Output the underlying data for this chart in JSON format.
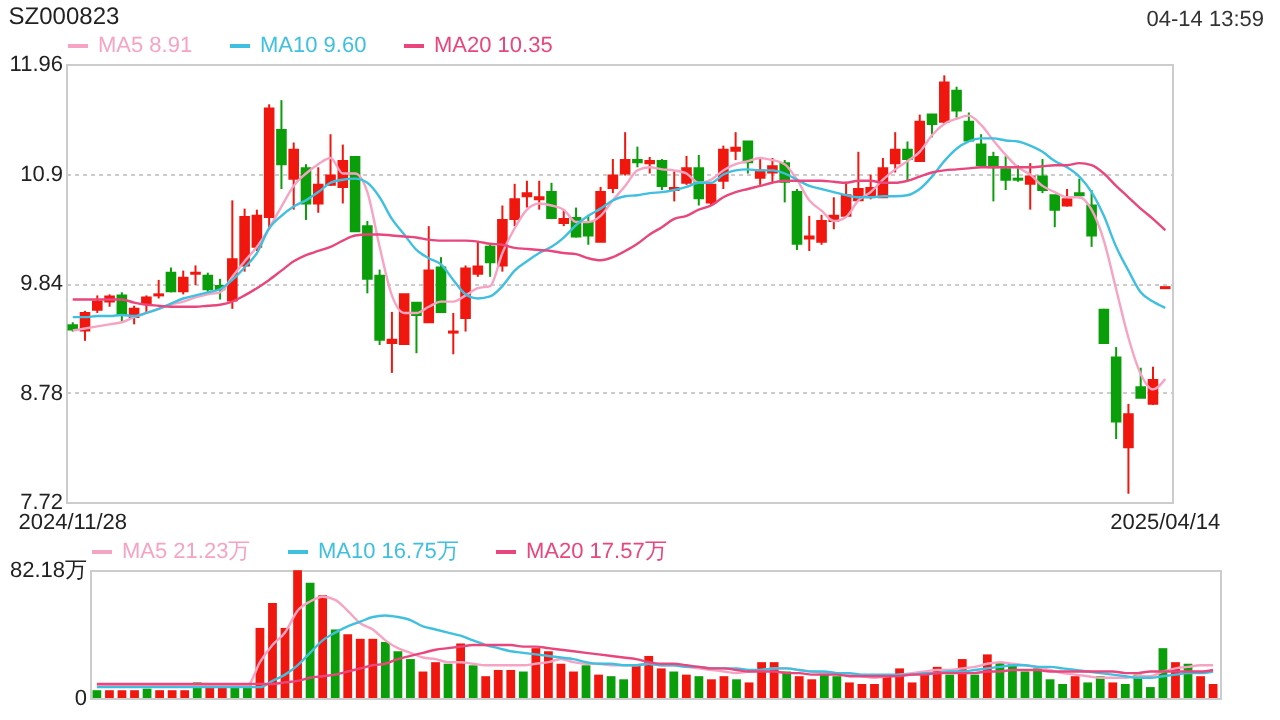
{
  "chart_data": [
    {
      "type": "candlestick",
      "title": "SZ000823",
      "annotations": [
        "04-14 13:59"
      ],
      "categories": [
        "2024/11/28",
        null,
        null,
        null,
        null,
        null,
        null,
        null,
        null,
        null,
        null,
        null,
        null,
        null,
        null,
        null,
        null,
        null,
        null,
        null,
        null,
        null,
        null,
        null,
        null,
        null,
        null,
        null,
        null,
        null,
        null,
        null,
        null,
        null,
        null,
        null,
        null,
        null,
        null,
        null,
        null,
        null,
        null,
        null,
        null,
        null,
        null,
        null,
        null,
        null,
        null,
        null,
        null,
        null,
        null,
        null,
        null,
        null,
        null,
        null,
        null,
        null,
        null,
        null,
        null,
        null,
        null,
        null,
        null,
        null,
        null,
        null,
        null,
        null,
        null,
        null,
        null,
        null,
        null,
        null,
        null,
        null,
        null,
        null,
        null,
        null,
        null,
        null,
        null,
        "2025/04/14"
      ],
      "ohlc": [
        [
          9.43,
          9.46,
          9.37,
          9.39
        ],
        [
          9.38,
          9.57,
          9.28,
          9.55
        ],
        [
          9.58,
          9.72,
          9.55,
          9.66
        ],
        [
          9.66,
          9.73,
          9.61,
          9.71
        ],
        [
          9.72,
          9.75,
          9.46,
          9.53
        ],
        [
          9.51,
          9.62,
          9.44,
          9.59
        ],
        [
          9.64,
          9.72,
          9.55,
          9.7
        ],
        [
          9.72,
          9.87,
          9.69,
          9.73
        ],
        [
          9.94,
          9.99,
          9.75,
          9.76
        ],
        [
          9.76,
          9.96,
          9.73,
          9.89
        ],
        [
          9.93,
          10.01,
          9.82,
          9.94
        ],
        [
          9.91,
          9.94,
          9.75,
          9.78
        ],
        [
          9.81,
          9.88,
          9.68,
          9.78
        ],
        [
          9.67,
          10.64,
          9.59,
          10.07
        ],
        [
          10.01,
          10.56,
          9.95,
          10.48
        ],
        [
          10.19,
          10.55,
          10.15,
          10.49
        ],
        [
          10.48,
          11.57,
          10.36,
          11.53
        ],
        [
          11.32,
          11.61,
          10.75,
          10.99
        ],
        [
          10.85,
          11.2,
          10.55,
          11.13
        ],
        [
          10.95,
          10.99,
          10.45,
          10.61
        ],
        [
          10.61,
          10.96,
          10.52,
          10.79
        ],
        [
          10.79,
          11.28,
          10.78,
          10.88
        ],
        [
          10.77,
          11.18,
          10.61,
          11.02
        ],
        [
          11.06,
          11.07,
          10.34,
          10.34
        ],
        [
          10.39,
          10.44,
          9.74,
          9.88
        ],
        [
          9.91,
          9.97,
          9.24,
          9.29
        ],
        [
          9.26,
          9.56,
          8.97,
          9.29
        ],
        [
          9.25,
          9.73,
          9.25,
          9.73
        ],
        [
          9.65,
          9.65,
          9.16,
          9.53
        ],
        [
          9.46,
          10.39,
          9.46,
          9.96
        ],
        [
          9.99,
          10.09,
          9.55,
          9.56
        ],
        [
          9.36,
          9.55,
          9.15,
          9.37
        ],
        [
          9.5,
          10.01,
          9.37,
          9.98
        ],
        [
          9.93,
          10.24,
          9.9,
          10.0
        ],
        [
          10.19,
          10.21,
          9.9,
          10.04
        ],
        [
          10.01,
          10.59,
          9.95,
          10.45
        ],
        [
          10.46,
          10.8,
          10.39,
          10.65
        ],
        [
          10.68,
          10.83,
          10.57,
          10.71
        ],
        [
          10.65,
          10.83,
          10.55,
          10.67
        ],
        [
          10.72,
          10.81,
          10.46,
          10.47
        ],
        [
          10.42,
          10.55,
          10.39,
          10.46
        ],
        [
          10.47,
          10.57,
          10.28,
          10.29
        ],
        [
          10.43,
          10.5,
          10.21,
          10.3
        ],
        [
          10.24,
          10.77,
          10.24,
          10.72
        ],
        [
          10.76,
          11.04,
          10.71,
          10.88
        ],
        [
          10.9,
          11.3,
          10.88,
          11.03
        ],
        [
          11.03,
          11.16,
          10.96,
          11.01
        ],
        [
          11.0,
          11.06,
          10.9,
          11.02
        ],
        [
          11.02,
          11.04,
          10.74,
          10.78
        ],
        [
          10.74,
          10.92,
          10.63,
          10.76
        ],
        [
          10.81,
          11.07,
          10.79,
          10.95
        ],
        [
          10.95,
          11.08,
          10.59,
          10.66
        ],
        [
          10.62,
          10.81,
          10.59,
          10.79
        ],
        [
          10.83,
          11.17,
          10.75,
          11.13
        ],
        [
          11.12,
          11.3,
          11.03,
          11.15
        ],
        [
          11.21,
          11.21,
          10.9,
          11.01
        ],
        [
          10.86,
          11.06,
          10.79,
          10.93
        ],
        [
          10.91,
          11.05,
          10.81,
          10.97
        ],
        [
          11.0,
          11.03,
          10.62,
          10.82
        ],
        [
          10.72,
          10.75,
          10.16,
          10.22
        ],
        [
          10.27,
          10.49,
          10.15,
          10.29
        ],
        [
          10.24,
          10.5,
          10.21,
          10.44
        ],
        [
          10.44,
          10.67,
          10.36,
          10.49
        ],
        [
          10.49,
          10.82,
          10.48,
          10.69
        ],
        [
          10.64,
          11.11,
          10.64,
          10.75
        ],
        [
          10.69,
          10.89,
          10.65,
          10.76
        ],
        [
          10.67,
          11.05,
          10.67,
          10.95
        ],
        [
          11.0,
          11.3,
          10.91,
          11.13
        ],
        [
          11.13,
          11.21,
          10.83,
          11.04
        ],
        [
          11.02,
          11.47,
          11.02,
          11.4
        ],
        [
          11.47,
          11.47,
          11.25,
          11.38
        ],
        [
          11.4,
          11.85,
          11.38,
          11.78
        ],
        [
          11.7,
          11.74,
          11.44,
          11.51
        ],
        [
          11.4,
          11.49,
          11.21,
          11.22
        ],
        [
          11.18,
          11.28,
          10.96,
          10.98
        ],
        [
          11.06,
          11.11,
          10.63,
          10.96
        ],
        [
          10.94,
          11.07,
          10.74,
          10.84
        ],
        [
          10.85,
          10.98,
          10.82,
          10.84
        ],
        [
          10.8,
          11.0,
          10.55,
          10.87
        ],
        [
          10.87,
          11.04,
          10.71,
          10.74
        ],
        [
          10.69,
          10.69,
          10.38,
          10.55
        ],
        [
          10.59,
          10.75,
          10.58,
          10.65
        ],
        [
          10.71,
          10.85,
          10.66,
          10.69
        ],
        [
          10.59,
          10.74,
          10.19,
          10.3
        ],
        [
          9.58,
          9.59,
          9.26,
          9.26
        ],
        [
          9.12,
          9.22,
          8.33,
          8.5
        ],
        [
          8.25,
          8.67,
          7.8,
          8.57
        ],
        [
          8.83,
          9.02,
          8.73,
          8.73
        ],
        [
          8.67,
          9.03,
          8.66,
          8.9
        ],
        [
          9.79,
          9.8,
          9.79,
          9.8
        ]
      ],
      "colors": [
        "#0a9e0a",
        "#f0170f",
        "#f0170f",
        "#f0170f",
        "#0a9e0a",
        "#f0170f",
        "#f0170f",
        "#f0170f",
        "#0a9e0a",
        "#f0170f",
        "#f0170f",
        "#0a9e0a",
        "#0a9e0a",
        "#f0170f",
        "#f0170f",
        "#f0170f",
        "#f0170f",
        "#0a9e0a",
        "#f0170f",
        "#0a9e0a",
        "#f0170f",
        "#f0170f",
        "#f0170f",
        "#0a9e0a",
        "#0a9e0a",
        "#0a9e0a",
        "#f0170f",
        "#f0170f",
        "#0a9e0a",
        "#f0170f",
        "#0a9e0a",
        "#f0170f",
        "#f0170f",
        "#f0170f",
        "#0a9e0a",
        "#f0170f",
        "#f0170f",
        "#f0170f",
        "#f0170f",
        "#0a9e0a",
        "#f0170f",
        "#0a9e0a",
        "#0a9e0a",
        "#f0170f",
        "#f0170f",
        "#f0170f",
        "#0a9e0a",
        "#f0170f",
        "#0a9e0a",
        "#f0170f",
        "#f0170f",
        "#0a9e0a",
        "#f0170f",
        "#f0170f",
        "#f0170f",
        "#0a9e0a",
        "#f0170f",
        "#f0170f",
        "#0a9e0a",
        "#0a9e0a",
        "#f0170f",
        "#f0170f",
        "#f0170f",
        "#f0170f",
        "#f0170f",
        "#f0170f",
        "#f0170f",
        "#f0170f",
        "#0a9e0a",
        "#f0170f",
        "#0a9e0a",
        "#f0170f",
        "#0a9e0a",
        "#0a9e0a",
        "#0a9e0a",
        "#0a9e0a",
        "#0a9e0a",
        "#0a9e0a",
        "#f0170f",
        "#0a9e0a",
        "#0a9e0a",
        "#f0170f",
        "#0a9e0a",
        "#0a9e0a",
        "#0a9e0a",
        "#0a9e0a",
        "#f0170f",
        "#0a9e0a",
        "#f0170f",
        "#f0170f"
      ],
      "series": [
        {
          "name": "MA5 8.91",
          "type": "line",
          "color": "#f7a3c3",
          "values": [
            9.38,
            9.4,
            9.42,
            9.44,
            9.46,
            9.51,
            9.55,
            9.59,
            9.63,
            9.66,
            9.7,
            9.73,
            9.75,
            9.9,
            10.05,
            10.19,
            10.37,
            10.58,
            10.78,
            10.9,
            10.99,
            11.05,
            10.9,
            10.9,
            10.72,
            10.19,
            9.72,
            9.55,
            9.55,
            9.61,
            9.66,
            9.66,
            9.72,
            9.79,
            9.81,
            10.13,
            10.37,
            10.55,
            10.61,
            10.59,
            10.55,
            10.43,
            10.43,
            10.49,
            10.64,
            10.78,
            10.93,
            10.96,
            10.94,
            10.93,
            10.9,
            10.81,
            10.84,
            10.93,
            10.99,
            11.02,
            11.05,
            11.03,
            10.99,
            10.84,
            10.64,
            10.54,
            10.44,
            10.48,
            10.64,
            10.72,
            10.84,
            10.94,
            11.02,
            11.11,
            11.27,
            11.38,
            11.43,
            11.46,
            11.37,
            11.22,
            11.08,
            10.96,
            10.89,
            10.78,
            10.72,
            10.67,
            10.67,
            10.55,
            10.25,
            9.78,
            9.31,
            8.96,
            8.81,
            8.91
          ]
        },
        {
          "name": "MA10 9.60",
          "type": "line",
          "color": "#40c0e0",
          "values": [
            9.51,
            9.51,
            9.52,
            9.52,
            9.53,
            9.52,
            9.55,
            9.59,
            9.64,
            9.69,
            9.72,
            9.75,
            9.78,
            9.87,
            9.99,
            10.13,
            10.37,
            10.49,
            10.58,
            10.64,
            10.72,
            10.81,
            10.84,
            10.85,
            10.81,
            10.67,
            10.46,
            10.31,
            10.16,
            10.08,
            10.02,
            9.87,
            9.73,
            9.69,
            9.71,
            9.81,
            9.96,
            10.05,
            10.13,
            10.19,
            10.28,
            10.4,
            10.49,
            10.56,
            10.64,
            10.68,
            10.69,
            10.71,
            10.72,
            10.74,
            10.77,
            10.81,
            10.81,
            10.89,
            10.93,
            10.94,
            10.93,
            10.93,
            10.9,
            10.84,
            10.78,
            10.75,
            10.72,
            10.69,
            10.67,
            10.67,
            10.68,
            10.68,
            10.69,
            10.75,
            10.87,
            11.02,
            11.14,
            11.21,
            11.24,
            11.24,
            11.22,
            11.21,
            11.17,
            11.11,
            11.02,
            10.96,
            10.87,
            10.72,
            10.49,
            10.19,
            9.96,
            9.75,
            9.66,
            9.6
          ]
        },
        {
          "name": "MA20 10.35",
          "type": "line",
          "color": "#e8467c",
          "values": [
            9.68,
            9.68,
            9.68,
            9.68,
            9.68,
            9.65,
            9.63,
            9.62,
            9.61,
            9.61,
            9.61,
            9.62,
            9.63,
            9.66,
            9.72,
            9.79,
            9.87,
            9.96,
            10.05,
            10.11,
            10.15,
            10.19,
            10.25,
            10.3,
            10.31,
            10.31,
            10.3,
            10.29,
            10.28,
            10.26,
            10.25,
            10.25,
            10.25,
            10.24,
            10.22,
            10.21,
            10.18,
            10.17,
            10.16,
            10.15,
            10.13,
            10.12,
            10.08,
            10.06,
            10.09,
            10.15,
            10.22,
            10.31,
            10.38,
            10.46,
            10.49,
            10.55,
            10.59,
            10.67,
            10.72,
            10.75,
            10.78,
            10.81,
            10.83,
            10.83,
            10.83,
            10.83,
            10.82,
            10.81,
            10.83,
            10.83,
            10.81,
            10.81,
            10.83,
            10.87,
            10.91,
            10.93,
            10.94,
            10.95,
            10.96,
            10.96,
            10.96,
            10.96,
            10.96,
            10.97,
            10.98,
            10.98,
            11.0,
            10.98,
            10.9,
            10.78,
            10.67,
            10.56,
            10.46,
            10.35
          ]
        }
      ],
      "ylim": [
        7.72,
        11.96
      ],
      "yticks": [
        7.72,
        8.78,
        9.84,
        10.9,
        11.96
      ],
      "grid": "y",
      "legend": "top left"
    },
    {
      "type": "bar",
      "tick_labels": "y",
      "categories": [
        null,
        null,
        null,
        null,
        null,
        null,
        null,
        null,
        null,
        null,
        null,
        null,
        null,
        null,
        null,
        null,
        null,
        null,
        null,
        null,
        null,
        null,
        null,
        null,
        null,
        null,
        null,
        null,
        null,
        null,
        null,
        null,
        null,
        null,
        null,
        null,
        null,
        null,
        null,
        null,
        null,
        null,
        null,
        null,
        null,
        null,
        null,
        null,
        null,
        null,
        null,
        null,
        null,
        null,
        null,
        null,
        null,
        null,
        null,
        null,
        null,
        null,
        null,
        null,
        null,
        null,
        null,
        null,
        null,
        null,
        null,
        null,
        null,
        null,
        null,
        null,
        null,
        null,
        null,
        null,
        null,
        null,
        null,
        null,
        null,
        null,
        null,
        null,
        null,
        null
      ],
      "values": [
        5,
        5,
        5,
        5,
        6,
        5,
        5,
        5,
        10,
        8,
        8,
        8,
        8,
        45,
        61,
        45,
        82,
        74,
        66,
        44,
        41,
        38,
        38,
        36,
        30,
        25,
        17,
        23,
        22,
        35,
        21,
        14,
        18,
        18,
        17,
        32,
        30,
        22,
        17,
        21,
        15,
        14,
        12,
        21,
        27,
        19,
        17,
        15,
        14,
        12,
        14,
        12,
        10,
        23,
        23,
        17,
        14,
        12,
        15,
        14,
        10,
        9,
        9,
        14,
        19,
        10,
        17,
        20,
        15,
        25,
        15,
        28,
        23,
        22,
        17,
        19,
        12,
        9,
        14,
        10,
        14,
        10,
        9,
        15,
        7,
        32,
        23,
        22,
        14,
        9
      ],
      "colors": [
        "#0a9e0a",
        "#f0170f",
        "#f0170f",
        "#f0170f",
        "#0a9e0a",
        "#f0170f",
        "#f0170f",
        "#f0170f",
        "#0a9e0a",
        "#f0170f",
        "#f0170f",
        "#0a9e0a",
        "#0a9e0a",
        "#f0170f",
        "#f0170f",
        "#f0170f",
        "#f0170f",
        "#0a9e0a",
        "#f0170f",
        "#0a9e0a",
        "#f0170f",
        "#f0170f",
        "#f0170f",
        "#0a9e0a",
        "#0a9e0a",
        "#0a9e0a",
        "#f0170f",
        "#f0170f",
        "#0a9e0a",
        "#f0170f",
        "#0a9e0a",
        "#f0170f",
        "#f0170f",
        "#f0170f",
        "#0a9e0a",
        "#f0170f",
        "#f0170f",
        "#f0170f",
        "#f0170f",
        "#0a9e0a",
        "#f0170f",
        "#0a9e0a",
        "#0a9e0a",
        "#f0170f",
        "#f0170f",
        "#f0170f",
        "#0a9e0a",
        "#f0170f",
        "#0a9e0a",
        "#f0170f",
        "#f0170f",
        "#0a9e0a",
        "#f0170f",
        "#f0170f",
        "#f0170f",
        "#0a9e0a",
        "#f0170f",
        "#f0170f",
        "#0a9e0a",
        "#0a9e0a",
        "#f0170f",
        "#f0170f",
        "#f0170f",
        "#f0170f",
        "#f0170f",
        "#f0170f",
        "#f0170f",
        "#f0170f",
        "#0a9e0a",
        "#f0170f",
        "#0a9e0a",
        "#f0170f",
        "#0a9e0a",
        "#0a9e0a",
        "#0a9e0a",
        "#0a9e0a",
        "#0a9e0a",
        "#0a9e0a",
        "#f0170f",
        "#0a9e0a",
        "#0a9e0a",
        "#f0170f",
        "#0a9e0a",
        "#0a9e0a",
        "#0a9e0a",
        "#0a9e0a",
        "#f0170f",
        "#0a9e0a",
        "#f0170f",
        "#f0170f"
      ],
      "series": [
        {
          "name": "MA5 21.23万",
          "type": "line",
          "color": "#f7a3c3",
          "values": [
            8,
            8,
            8,
            8,
            8,
            8,
            8,
            8,
            8,
            8,
            8,
            8,
            8,
            23,
            34,
            42,
            56,
            62,
            65,
            63,
            56,
            48,
            44,
            37,
            32,
            29,
            26,
            25,
            23,
            23,
            22,
            21,
            21,
            21,
            21,
            22,
            23,
            25,
            23,
            22,
            22,
            21,
            21,
            21,
            22,
            21,
            21,
            20,
            19,
            18,
            17,
            16,
            17,
            18,
            19,
            19,
            18,
            17,
            16,
            16,
            15,
            14,
            13,
            14,
            15,
            16,
            17,
            18,
            18,
            19,
            20,
            22,
            23,
            22,
            21,
            20,
            18,
            16,
            15,
            14,
            13,
            13,
            13,
            14,
            14,
            17,
            19,
            20,
            21,
            21
          ]
        },
        {
          "name": "MA10 16.75万",
          "type": "line",
          "color": "#40c0e0",
          "values": [
            7,
            7,
            7,
            7,
            7,
            7,
            7,
            7,
            7,
            7,
            7,
            7,
            7,
            7,
            11,
            15,
            21,
            29,
            37,
            42,
            46,
            49,
            52,
            53,
            52,
            50,
            46,
            44,
            42,
            40,
            37,
            34,
            32,
            30,
            29,
            28,
            27,
            26,
            25,
            23,
            22,
            22,
            21,
            21,
            22,
            21,
            21,
            20,
            20,
            19,
            19,
            19,
            18,
            18,
            19,
            19,
            18,
            17,
            17,
            16,
            16,
            15,
            15,
            15,
            15,
            15,
            16,
            16,
            17,
            17,
            18,
            19,
            20,
            21,
            21,
            20,
            20,
            19,
            18,
            17,
            16,
            15,
            14,
            13,
            13,
            14,
            15,
            16,
            16,
            17
          ]
        },
        {
          "name": "MA20 17.57万",
          "type": "line",
          "color": "#e8467c",
          "values": [
            9,
            9,
            9,
            9,
            9,
            9,
            9,
            9,
            9,
            9,
            9,
            9,
            9,
            9,
            9,
            10,
            11,
            13,
            14,
            15,
            17,
            19,
            21,
            22,
            25,
            27,
            29,
            31,
            32,
            33,
            34,
            34,
            34,
            34,
            33,
            33,
            32,
            31,
            30,
            29,
            28,
            27,
            26,
            25,
            23,
            22,
            22,
            21,
            20,
            19,
            19,
            18,
            17,
            17,
            17,
            16,
            16,
            15,
            15,
            15,
            14,
            14,
            14,
            14,
            14,
            15,
            15,
            16,
            16,
            16,
            16,
            17,
            17,
            18,
            18,
            18,
            17,
            17,
            17,
            17,
            17,
            17,
            16,
            16,
            17,
            17,
            17,
            17,
            17,
            18
          ]
        }
      ],
      "ylim": [
        0,
        82.18
      ],
      "yticks": [
        0,
        {
          "value": 82.18,
          "label": "82.18万"
        }
      ],
      "legend": "top left"
    }
  ]
}
